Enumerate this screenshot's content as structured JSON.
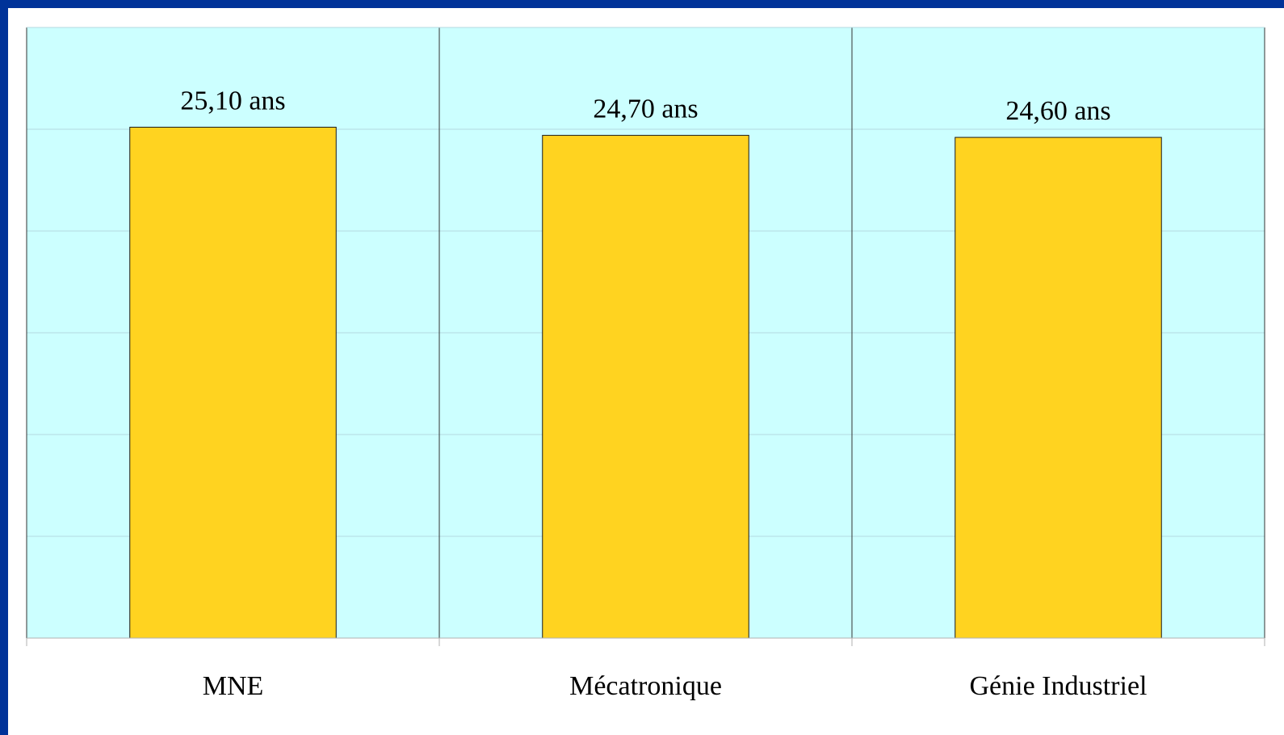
{
  "colors": {
    "frame": "#003399",
    "plot_background": "#ccffff",
    "gridline": "#b3d9e0",
    "bar_fill": "#ffd320",
    "bar_stroke": "#1a1a1a",
    "divider": "#333333"
  },
  "chart_data": {
    "type": "bar",
    "categories": [
      "MNE",
      "Mécatronique",
      "Génie Industriel"
    ],
    "values": [
      25.1,
      24.7,
      24.6
    ],
    "data_labels": [
      "25,10 ans",
      "24,70 ans",
      "24,60 ans"
    ],
    "ylim": [
      0,
      30
    ],
    "grid": true,
    "legend": "none"
  }
}
